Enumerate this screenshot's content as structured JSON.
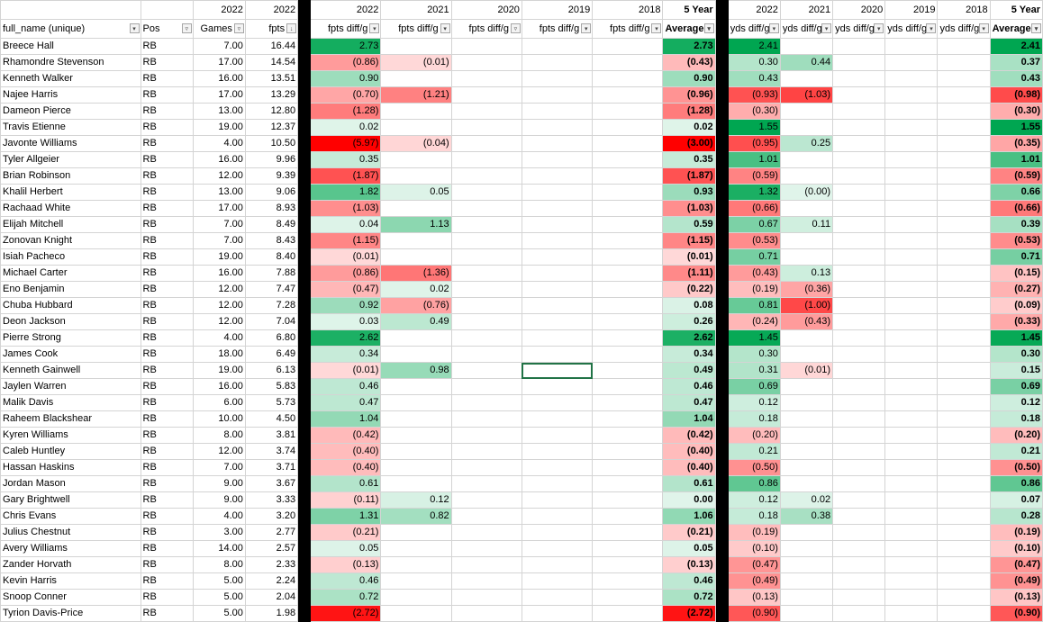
{
  "year_header": [
    "",
    "",
    "2022",
    "2022",
    "",
    "2022",
    "2021",
    "2020",
    "2019",
    "2018",
    "5 Year",
    "",
    "2022",
    "2021",
    "2020",
    "2019",
    "2018",
    "5 Year"
  ],
  "column_headers": [
    "full_name (unique)",
    "Pos",
    "Games",
    "fpts",
    "",
    "fpts diff/g",
    "fpts diff/g",
    "fpts diff/g",
    "fpts diff/g",
    "fpts diff/g",
    "Average",
    "",
    "yds diff/g",
    "yds diff/g",
    "yds diff/g",
    "yds diff/g",
    "yds diff/g",
    "Average"
  ],
  "filter_icons": [
    "dropdown-arrow-icon",
    "filter-applied-icon",
    "sort-descending-icon"
  ],
  "selected_cell": {
    "row": 21,
    "column": "2019 fpts diff/g"
  },
  "rows": [
    [
      "Breece Hall",
      "RB",
      "7.00",
      "16.44",
      "2.73",
      "",
      "2.73",
      "2.41",
      "",
      "2.41"
    ],
    [
      "Rhamondre Stevenson",
      "RB",
      "17.00",
      "14.54",
      "(0.86)",
      "(0.01)",
      "(0.43)",
      "0.30",
      "0.44",
      "0.37"
    ],
    [
      "Kenneth Walker",
      "RB",
      "16.00",
      "13.51",
      "0.90",
      "",
      "0.90",
      "0.43",
      "",
      "0.43"
    ],
    [
      "Najee Harris",
      "RB",
      "17.00",
      "13.29",
      "(0.70)",
      "(1.21)",
      "(0.96)",
      "(0.93)",
      "(1.03)",
      "(0.98)"
    ],
    [
      "Dameon Pierce",
      "RB",
      "13.00",
      "12.80",
      "(1.28)",
      "",
      "(1.28)",
      "(0.30)",
      "",
      "(0.30)"
    ],
    [
      "Travis Etienne",
      "RB",
      "19.00",
      "12.37",
      "0.02",
      "",
      "0.02",
      "1.55",
      "",
      "1.55"
    ],
    [
      "Javonte Williams",
      "RB",
      "4.00",
      "10.50",
      "(5.97)",
      "(0.04)",
      "(3.00)",
      "(0.95)",
      "0.25",
      "(0.35)"
    ],
    [
      "Tyler Allgeier",
      "RB",
      "16.00",
      "9.96",
      "0.35",
      "",
      "0.35",
      "1.01",
      "",
      "1.01"
    ],
    [
      "Brian Robinson",
      "RB",
      "12.00",
      "9.39",
      "(1.87)",
      "",
      "(1.87)",
      "(0.59)",
      "",
      "(0.59)"
    ],
    [
      "Khalil Herbert",
      "RB",
      "13.00",
      "9.06",
      "1.82",
      "0.05",
      "0.93",
      "1.32",
      "(0.00)",
      "0.66"
    ],
    [
      "Rachaad White",
      "RB",
      "17.00",
      "8.93",
      "(1.03)",
      "",
      "(1.03)",
      "(0.66)",
      "",
      "(0.66)"
    ],
    [
      "Elijah Mitchell",
      "RB",
      "7.00",
      "8.49",
      "0.04",
      "1.13",
      "0.59",
      "0.67",
      "0.11",
      "0.39"
    ],
    [
      "Zonovan Knight",
      "RB",
      "7.00",
      "8.43",
      "(1.15)",
      "",
      "(1.15)",
      "(0.53)",
      "",
      "(0.53)"
    ],
    [
      "Isiah Pacheco",
      "RB",
      "19.00",
      "8.40",
      "(0.01)",
      "",
      "(0.01)",
      "0.71",
      "",
      "0.71"
    ],
    [
      "Michael Carter",
      "RB",
      "16.00",
      "7.88",
      "(0.86)",
      "(1.36)",
      "(1.11)",
      "(0.43)",
      "0.13",
      "(0.15)"
    ],
    [
      "Eno Benjamin",
      "RB",
      "12.00",
      "7.47",
      "(0.47)",
      "0.02",
      "(0.22)",
      "(0.19)",
      "(0.36)",
      "(0.27)"
    ],
    [
      "Chuba Hubbard",
      "RB",
      "12.00",
      "7.28",
      "0.92",
      "(0.76)",
      "0.08",
      "0.81",
      "(1.00)",
      "(0.09)"
    ],
    [
      "Deon Jackson",
      "RB",
      "12.00",
      "7.04",
      "0.03",
      "0.49",
      "0.26",
      "(0.24)",
      "(0.43)",
      "(0.33)"
    ],
    [
      "Pierre Strong",
      "RB",
      "4.00",
      "6.80",
      "2.62",
      "",
      "2.62",
      "1.45",
      "",
      "1.45"
    ],
    [
      "James Cook",
      "RB",
      "18.00",
      "6.49",
      "0.34",
      "",
      "0.34",
      "0.30",
      "",
      "0.30"
    ],
    [
      "Kenneth Gainwell",
      "RB",
      "19.00",
      "6.13",
      "(0.01)",
      "0.98",
      "0.49",
      "0.31",
      "(0.01)",
      "0.15"
    ],
    [
      "Jaylen Warren",
      "RB",
      "16.00",
      "5.83",
      "0.46",
      "",
      "0.46",
      "0.69",
      "",
      "0.69"
    ],
    [
      "Malik Davis",
      "RB",
      "6.00",
      "5.73",
      "0.47",
      "",
      "0.47",
      "0.12",
      "",
      "0.12"
    ],
    [
      "Raheem Blackshear",
      "RB",
      "10.00",
      "4.50",
      "1.04",
      "",
      "1.04",
      "0.18",
      "",
      "0.18"
    ],
    [
      "Kyren Williams",
      "RB",
      "8.00",
      "3.81",
      "(0.42)",
      "",
      "(0.42)",
      "(0.20)",
      "",
      "(0.20)"
    ],
    [
      "Caleb Huntley",
      "RB",
      "12.00",
      "3.74",
      "(0.40)",
      "",
      "(0.40)",
      "0.21",
      "",
      "0.21"
    ],
    [
      "Hassan Haskins",
      "RB",
      "7.00",
      "3.71",
      "(0.40)",
      "",
      "(0.40)",
      "(0.50)",
      "",
      "(0.50)"
    ],
    [
      "Jordan Mason",
      "RB",
      "9.00",
      "3.67",
      "0.61",
      "",
      "0.61",
      "0.86",
      "",
      "0.86"
    ],
    [
      "Gary Brightwell",
      "RB",
      "9.00",
      "3.33",
      "(0.11)",
      "0.12",
      "0.00",
      "0.12",
      "0.02",
      "0.07"
    ],
    [
      "Chris Evans",
      "RB",
      "4.00",
      "3.20",
      "1.31",
      "0.82",
      "1.06",
      "0.18",
      "0.38",
      "0.28"
    ],
    [
      "Julius Chestnut",
      "RB",
      "3.00",
      "2.77",
      "(0.21)",
      "",
      "(0.21)",
      "(0.19)",
      "",
      "(0.19)"
    ],
    [
      "Avery Williams",
      "RB",
      "14.00",
      "2.57",
      "0.05",
      "",
      "0.05",
      "(0.10)",
      "",
      "(0.10)"
    ],
    [
      "Zander Horvath",
      "RB",
      "8.00",
      "2.33",
      "(0.13)",
      "",
      "(0.13)",
      "(0.47)",
      "",
      "(0.47)"
    ],
    [
      "Kevin Harris",
      "RB",
      "5.00",
      "2.24",
      "0.46",
      "",
      "0.46",
      "(0.49)",
      "",
      "(0.49)"
    ],
    [
      "Snoop Conner",
      "RB",
      "5.00",
      "2.04",
      "0.72",
      "",
      "0.72",
      "(0.13)",
      "",
      "(0.13)"
    ],
    [
      "Tyrion Davis-Price",
      "RB",
      "5.00",
      "1.98",
      "(2.72)",
      "",
      "(2.72)",
      "(0.90)",
      "",
      "(0.90)"
    ]
  ],
  "colors": {
    "max_green": "#00a651",
    "max_red": "#ff0000",
    "neutral": "#ffffff",
    "gridline": "#d4d4d4",
    "separator": "#000000",
    "selection_border": "#217346"
  }
}
